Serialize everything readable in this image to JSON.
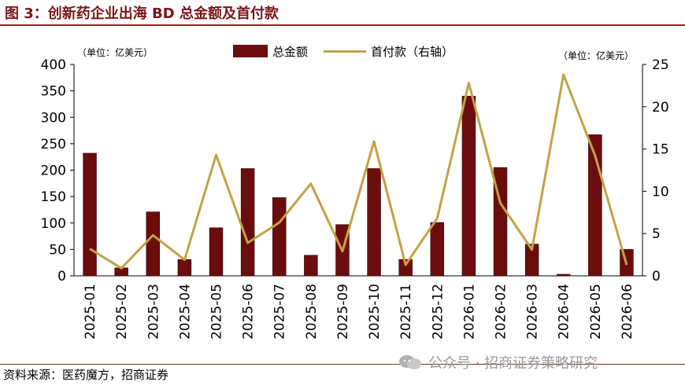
{
  "header": {
    "title": "图 3：创新药企业出海 BD 总金额及首付款"
  },
  "units": {
    "left": "（单位：亿美元）",
    "right": "（单位：亿美元）"
  },
  "legend": {
    "bar_label": "总金额",
    "line_label": "首付款（右轴）"
  },
  "footer": {
    "source": "资料来源：医药魔方，招商证券",
    "watermark": "公众号 · 招商证券策略研究"
  },
  "colors": {
    "bar": "#6b0d0d",
    "line": "#c4a146",
    "axis": "#000000",
    "title": "#7a1618"
  },
  "chart_data": {
    "type": "bar",
    "categories": [
      "2025-01",
      "2025-02",
      "2025-03",
      "2025-04",
      "2025-05",
      "2025-06",
      "2025-07",
      "2025-08",
      "2025-09",
      "2025-10",
      "2025-11",
      "2025-12",
      "2026-01",
      "2026-02",
      "2026-03",
      "2026-04",
      "2026-05",
      "2026-06"
    ],
    "series": [
      {
        "name": "总金额",
        "type": "bar",
        "axis": "left",
        "values": [
          232,
          15,
          121,
          31,
          91,
          203,
          148,
          39,
          97,
          203,
          31,
          101,
          340,
          205,
          60,
          3,
          267,
          50
        ]
      },
      {
        "name": "首付款（右轴）",
        "type": "line",
        "axis": "right",
        "values": [
          3.2,
          0.9,
          4.8,
          1.9,
          14.3,
          3.9,
          6.3,
          10.9,
          2.9,
          15.9,
          1.3,
          6.8,
          22.8,
          8.6,
          3.1,
          23.8,
          14.2,
          1.3
        ]
      }
    ],
    "yleft": {
      "min": 0,
      "max": 400,
      "ticks": [
        0,
        50,
        100,
        150,
        200,
        250,
        300,
        350,
        400
      ]
    },
    "yright": {
      "min": 0,
      "max": 25,
      "ticks": [
        0,
        5,
        10,
        15,
        20,
        25
      ]
    },
    "grid": false,
    "legend_position": "top-center"
  }
}
